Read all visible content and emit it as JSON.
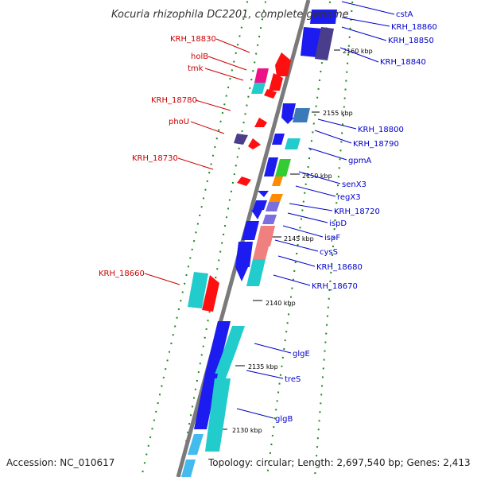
{
  "title": "Kocuria rhizophila DC2201, complete genome",
  "footer": {
    "accession": "Accession: NC_010617",
    "topology": "Topology: circular; Length: 2,697,540 bp; Genes: 2,413"
  },
  "colors": {
    "backbone": "#7a7a7a",
    "dots": "#1a8a1a",
    "left_label": "#cc0000",
    "right_label": "#0000cc"
  },
  "ticks": {
    "t2160": "2160 kbp",
    "t2155": "2155 kbp",
    "t2150": "2150 kbp",
    "t2145": "2145 kbp",
    "t2140": "2140 kbp",
    "t2135": "2135 kbp",
    "t2130": "2130 kbp"
  },
  "left_labels": {
    "krh_18830": "KRH_18830",
    "holb": "holB",
    "tmk": "tmk",
    "krh_18780": "KRH_18780",
    "phou": "phoU",
    "krh_18730": "KRH_18730",
    "krh_18660": "KRH_18660"
  },
  "right_labels": {
    "csta": "cstA",
    "krh_18860": "KRH_18860",
    "krh_18850": "KRH_18850",
    "krh_18840": "KRH_18840",
    "krh_18800": "KRH_18800",
    "krh_18790": "KRH_18790",
    "gpma": "gpmA",
    "senx3": "senX3",
    "regx3": "regX3",
    "krh_18720": "KRH_18720",
    "ispd": "ispD",
    "ispf": "ispF",
    "cyss": "cysS",
    "krh_18680": "KRH_18680",
    "krh_18670": "KRH_18670",
    "glge": "glgE",
    "tres": "treS",
    "glgb": "glgB"
  }
}
